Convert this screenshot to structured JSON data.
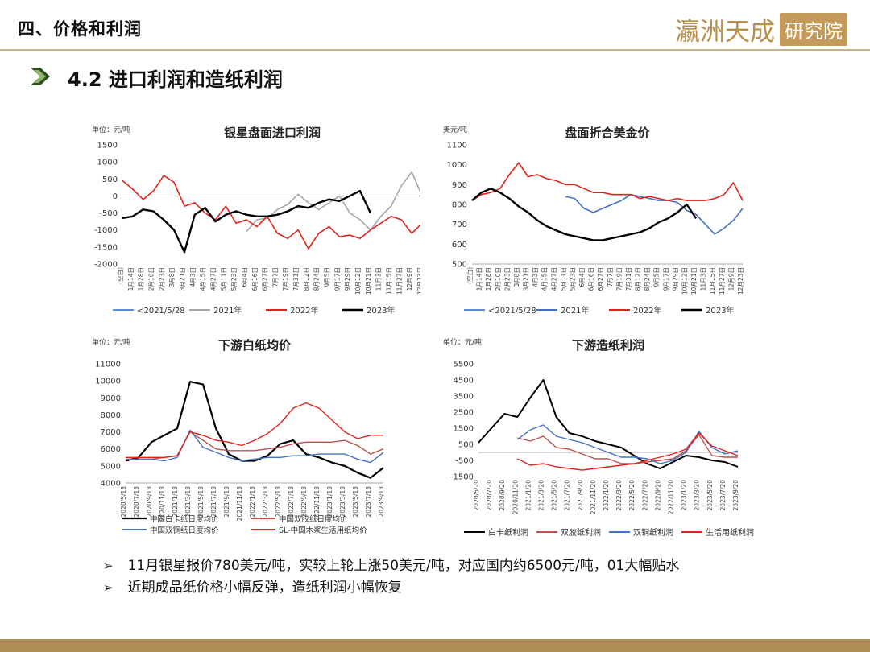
{
  "header": {
    "section_title": "四、价格和利润",
    "logo_text": "瀛洲天成",
    "logo_box": "研究院",
    "subtitle": "4.2 进口利润和造纸利润"
  },
  "bullets": [
    "11月银星报价780美元/吨，实较上轮上涨50美元/吨，对应国内约6500元/吨，01大幅贴水",
    "近期成品纸价格小幅反弹，造纸利润小幅恢复"
  ],
  "colors": {
    "accent": "#b08d57",
    "rule": "#c6b288",
    "arrow": "#2f4e1f"
  },
  "chart_data": [
    {
      "id": "c1",
      "type": "line",
      "title": "银星盘面进口利润",
      "unit": "单位：元/吨",
      "ylim": [
        -2000,
        1500
      ],
      "yticks": [
        -2000,
        -1500,
        -1000,
        -500,
        0,
        500,
        1000,
        1500
      ],
      "x_labels": [
        "(空白)",
        "1月14日",
        "1月28日",
        "2月10日",
        "2月23日",
        "3月8日",
        "3月21日",
        "4月3日",
        "4月15日",
        "4月27日",
        "5月11日",
        "5月23日",
        "6月4日",
        "6月16日",
        "6月27日",
        "7月7日",
        "7月19日",
        "7月31日",
        "8月12日",
        "8月24日",
        "9月5日",
        "9月17日",
        "9月29日",
        "10月12日",
        "10月21日",
        "11月3日",
        "11月15日",
        "11月27日",
        "12月9日",
        "12月23日"
      ],
      "series": [
        {
          "name": "<2021/5/28",
          "color": "#5b8fd0",
          "width": 1.6,
          "values": []
        },
        {
          "name": "2021年",
          "color": "#a6a6a6",
          "width": 1.6,
          "values": [
            null,
            null,
            null,
            null,
            null,
            null,
            null,
            null,
            null,
            null,
            null,
            null,
            -1050,
            -700,
            -650,
            -400,
            -250,
            50,
            -200,
            -400,
            -200,
            0,
            -500,
            -700,
            -1000,
            -600,
            -300,
            300,
            700,
            0
          ]
        },
        {
          "name": "2022年",
          "color": "#e3231b",
          "width": 1.6,
          "values": [
            450,
            200,
            -100,
            150,
            600,
            400,
            -300,
            -200,
            -500,
            -700,
            -300,
            -800,
            -700,
            -900,
            -600,
            -1100,
            -1250,
            -1000,
            -1550,
            -1100,
            -900,
            -1200,
            -1150,
            -1250,
            -1000,
            -800,
            -600,
            -700,
            -1100,
            -800
          ]
        },
        {
          "name": "2023年",
          "color": "#000000",
          "width": 2.4,
          "values": [
            -650,
            -600,
            -400,
            -450,
            -700,
            -1000,
            -1650,
            -550,
            -350,
            -750,
            -550,
            -450,
            -550,
            -600,
            -600,
            -550,
            -450,
            -300,
            -350,
            -200,
            -100,
            -150,
            0,
            150,
            -500,
            null,
            null,
            null,
            null,
            null
          ]
        }
      ]
    },
    {
      "id": "c2",
      "type": "line",
      "title": "盘面折合美金价",
      "unit": "美元/吨",
      "ylim": [
        500,
        1100
      ],
      "yticks": [
        500,
        600,
        700,
        800,
        900,
        1000,
        1100
      ],
      "x_labels": [
        "(空白)",
        "1月14日",
        "1月28日",
        "2月10日",
        "2月23日",
        "3月8日",
        "3月21日",
        "4月3日",
        "4月15日",
        "4月27日",
        "5月11日",
        "5月23日",
        "6月4日",
        "6月16日",
        "6月27日",
        "7月7日",
        "7月19日",
        "7月31日",
        "8月12日",
        "8月24日",
        "9月5日",
        "9月17日",
        "9月29日",
        "10月12日",
        "10月21日",
        "11月3日",
        "11月15日",
        "11月27日",
        "12月9日",
        "12月23日"
      ],
      "series": [
        {
          "name": "<2021/5/28",
          "color": "#5b8fd0",
          "width": 1.6,
          "values": []
        },
        {
          "name": "2021年",
          "color": "#4472c4",
          "width": 1.6,
          "values": [
            null,
            null,
            null,
            null,
            null,
            null,
            null,
            null,
            null,
            null,
            840,
            830,
            780,
            760,
            780,
            800,
            820,
            850,
            840,
            830,
            820,
            820,
            810,
            770,
            750,
            700,
            650,
            680,
            720,
            780
          ]
        },
        {
          "name": "2022年",
          "color": "#e3231b",
          "width": 1.6,
          "values": [
            820,
            850,
            860,
            880,
            950,
            1010,
            940,
            950,
            930,
            920,
            900,
            900,
            880,
            860,
            860,
            850,
            850,
            850,
            830,
            840,
            830,
            820,
            830,
            820,
            820,
            820,
            830,
            850,
            910,
            820
          ]
        },
        {
          "name": "2023年",
          "color": "#000000",
          "width": 2.4,
          "values": [
            820,
            860,
            880,
            860,
            830,
            790,
            760,
            720,
            690,
            670,
            650,
            640,
            630,
            620,
            620,
            630,
            640,
            650,
            660,
            680,
            710,
            730,
            760,
            800,
            730,
            null,
            null,
            null,
            null,
            null
          ]
        }
      ]
    },
    {
      "id": "c3",
      "type": "line",
      "title": "下游白纸均价",
      "unit": "单位：元/吨",
      "ylim": [
        4000,
        11000
      ],
      "yticks": [
        4000,
        5000,
        6000,
        7000,
        8000,
        9000,
        10000,
        11000
      ],
      "x_labels": [
        "2020/5/13",
        "2020/7/13",
        "2020/9/13",
        "2020/11/13",
        "2021/1/13",
        "2021/3/13",
        "2021/5/13",
        "2021/7/13",
        "2021/9/13",
        "2021/11/13",
        "2022/1/13",
        "2022/3/13",
        "2022/5/13",
        "2022/7/13",
        "2022/9/13",
        "2022/11/13",
        "2023/1/13",
        "2023/3/13",
        "2023/5/13",
        "2023/7/13",
        "2023/9/13"
      ],
      "series": [
        {
          "name": "中国白卡纸日度均价",
          "color": "#000000",
          "width": 2.2,
          "values": [
            5300,
            5500,
            6400,
            6800,
            7200,
            9950,
            9800,
            7200,
            5700,
            5300,
            5300,
            5600,
            6300,
            6500,
            5700,
            5500,
            5200,
            5000,
            4600,
            4300,
            4900
          ]
        },
        {
          "name": "中国双胶纸日度均价",
          "color": "#c0504d",
          "width": 1.4,
          "values": [
            5400,
            5400,
            5400,
            5500,
            5600,
            7000,
            6500,
            6000,
            5900,
            5900,
            5900,
            6000,
            6100,
            6300,
            6400,
            6400,
            6400,
            6500,
            6200,
            5700,
            6000
          ]
        },
        {
          "name": "中国双铜纸日度均价",
          "color": "#4472c4",
          "width": 1.4,
          "values": [
            5400,
            5400,
            5400,
            5300,
            5500,
            7100,
            6100,
            5800,
            5500,
            5300,
            5400,
            5500,
            5500,
            5600,
            5600,
            5700,
            5700,
            5700,
            5400,
            5200,
            5800
          ]
        },
        {
          "name": "SL-中国木浆生活用纸均价",
          "color": "#e3231b",
          "width": 1.4,
          "values": [
            5500,
            5500,
            5500,
            5500,
            5600,
            7000,
            6800,
            6500,
            6400,
            6200,
            6500,
            6900,
            7500,
            8400,
            8700,
            8400,
            7700,
            7000,
            6600,
            6800,
            6800
          ]
        }
      ]
    },
    {
      "id": "c4",
      "type": "line",
      "title": "下游造纸利润",
      "unit": "单位：元/吨",
      "ylim": [
        -1500,
        5500
      ],
      "yticks": [
        -1500,
        -500,
        500,
        1500,
        2500,
        3500,
        4500,
        5500
      ],
      "x_labels": [
        "2020/5/20",
        "2020/7/20",
        "2020/9/20",
        "2020/11/20",
        "2021/1/20",
        "2021/3/20",
        "2021/5/20",
        "2021/7/20",
        "2021/9/20",
        "2021/11/20",
        "2022/1/20",
        "2022/3/20",
        "2022/5/20",
        "2022/7/20",
        "2022/9/20",
        "2022/11/20",
        "2023/1/20",
        "2023/3/20",
        "2023/5/20",
        "2023/7/20",
        "2023/9/20"
      ],
      "series": [
        {
          "name": "白卡纸利润",
          "color": "#000000",
          "width": 2.0,
          "values": [
            600,
            1500,
            2400,
            2200,
            3400,
            4500,
            2200,
            1200,
            1000,
            700,
            500,
            300,
            -200,
            -700,
            -1000,
            -600,
            -200,
            -300,
            -500,
            -600,
            -900
          ]
        },
        {
          "name": "双胶纸利润",
          "color": "#c0504d",
          "width": 1.4,
          "values": [
            null,
            null,
            null,
            900,
            700,
            1000,
            300,
            200,
            -100,
            -400,
            -400,
            -700,
            -700,
            -600,
            -500,
            -400,
            100,
            1100,
            -200,
            -300,
            -300
          ]
        },
        {
          "name": "双铜纸利润",
          "color": "#4472c4",
          "width": 1.4,
          "values": [
            null,
            null,
            null,
            800,
            1400,
            1700,
            1000,
            800,
            600,
            300,
            0,
            -300,
            -300,
            -400,
            -700,
            -500,
            0,
            1300,
            300,
            -100,
            100
          ]
        },
        {
          "name": "生活用纸利润",
          "color": "#e3231b",
          "width": 1.4,
          "values": [
            null,
            null,
            null,
            -400,
            -800,
            -700,
            -900,
            -1000,
            -1100,
            -1000,
            -900,
            -800,
            -700,
            -500,
            -300,
            -100,
            200,
            1200,
            400,
            100,
            -200
          ]
        }
      ]
    }
  ]
}
